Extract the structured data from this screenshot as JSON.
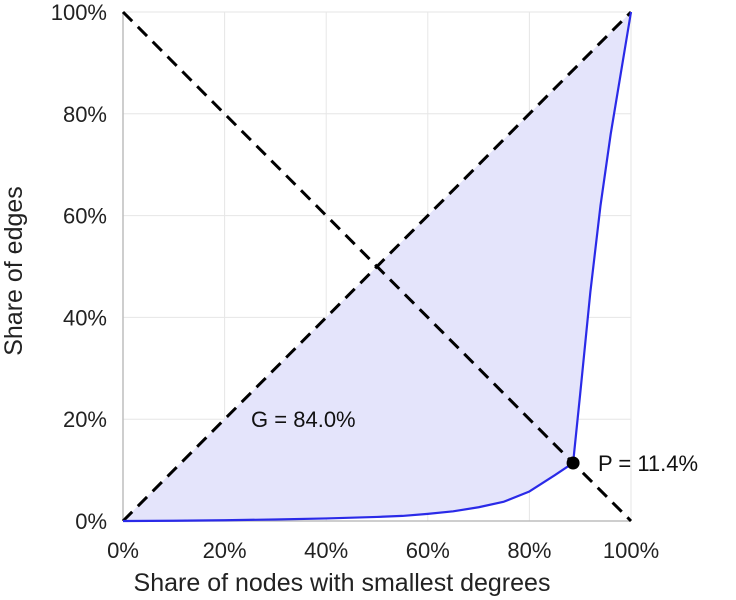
{
  "chart_data": {
    "type": "line",
    "title": "",
    "xlabel": "Share of nodes with smallest degrees",
    "ylabel": "Share of edges",
    "xlim": [
      0,
      100
    ],
    "ylim": [
      0,
      100
    ],
    "grid": true,
    "x_ticks": [
      0,
      20,
      40,
      60,
      80,
      100
    ],
    "y_ticks": [
      0,
      20,
      40,
      60,
      80,
      100
    ],
    "x_tick_labels": [
      "0%",
      "20%",
      "40%",
      "60%",
      "80%",
      "100%"
    ],
    "y_tick_labels": [
      "0%",
      "20%",
      "40%",
      "60%",
      "80%",
      "100%"
    ],
    "series": [
      {
        "name": "Lorenz curve",
        "color": "#2a2ae8",
        "fill_color": "#e4e4fb",
        "x": [
          0,
          10,
          20,
          30,
          40,
          50,
          55,
          60,
          65,
          70,
          75,
          80,
          85,
          88.6,
          90,
          92,
          94,
          96,
          98,
          100
        ],
        "y": [
          0,
          0.05,
          0.15,
          0.3,
          0.5,
          0.8,
          1.0,
          1.4,
          1.9,
          2.7,
          3.8,
          5.8,
          9.0,
          11.4,
          25,
          45,
          62,
          76,
          88,
          100
        ]
      }
    ],
    "reference_lines": [
      {
        "name": "equality-diagonal",
        "x": [
          0,
          100
        ],
        "y": [
          0,
          100
        ],
        "style": "dashed",
        "color": "#000000"
      },
      {
        "name": "anti-diagonal",
        "x": [
          0,
          100
        ],
        "y": [
          100,
          0
        ],
        "style": "dashed",
        "color": "#000000"
      }
    ],
    "point": {
      "name": "P",
      "x": 88.6,
      "y": 11.4,
      "color": "#000000"
    },
    "annotations": [
      {
        "name": "gini",
        "text": "G = 84.0%",
        "x": 35.5,
        "y": 20
      },
      {
        "name": "p-label",
        "text": "P = 11.4%",
        "x": 93.5,
        "y": 11.4
      }
    ]
  }
}
